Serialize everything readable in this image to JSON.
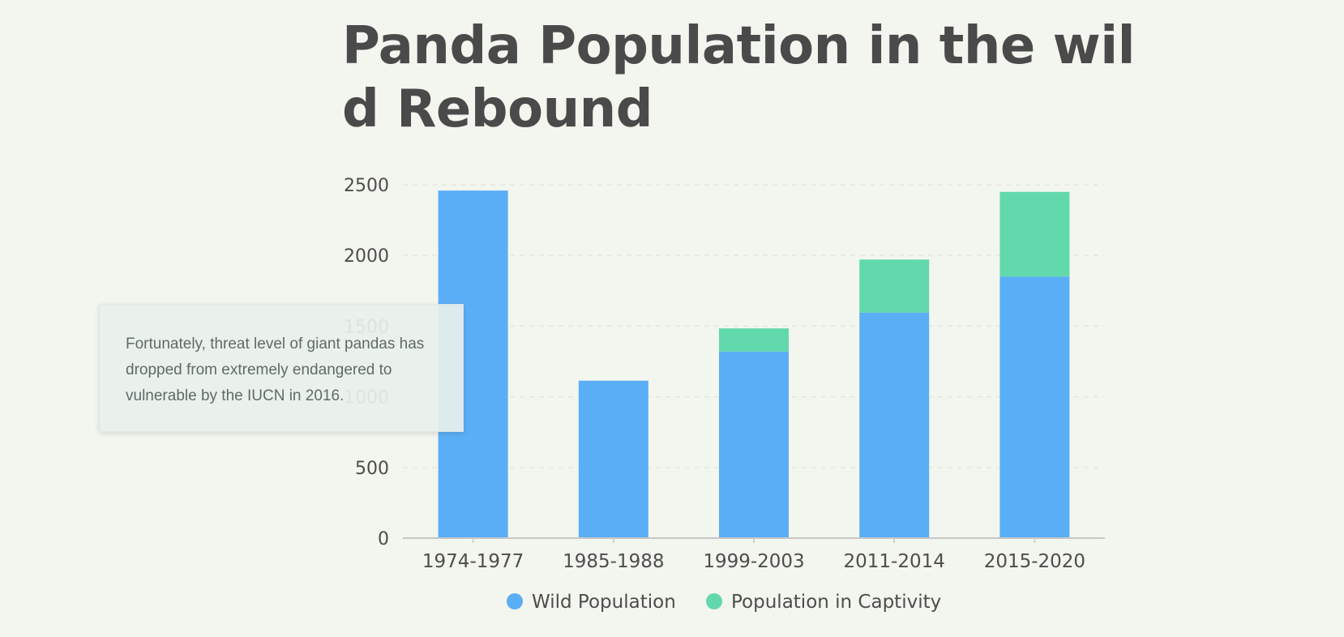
{
  "title": "Panda Population in the wild Rebound",
  "tooltip": {
    "text": "Fortunately, threat level of giant pandas has dropped from extremely endangered to vulnerable by the IUCN in 2016."
  },
  "colors": {
    "wild": "#5aaef5",
    "captivity": "#62d9ac",
    "grid": "#e4e8df",
    "axis": "#c8c8c8"
  },
  "chart_data": {
    "type": "bar",
    "stacked": true,
    "categories": [
      "1974-1977",
      "1985-1988",
      "1999-2003",
      "2011-2014",
      "2015-2020"
    ],
    "series": [
      {
        "name": "Wild Population",
        "values": [
          2459,
          1114,
          1320,
          1596,
          1850
        ]
      },
      {
        "name": "Population in Captivity",
        "values": [
          0,
          0,
          164,
          375,
          600
        ]
      }
    ],
    "yticks": [
      0,
      500,
      1000,
      1500,
      2000,
      2500
    ],
    "ylim": [
      0,
      2500
    ],
    "grid": true,
    "legend": "bottom-center",
    "xlabel": "",
    "ylabel": ""
  }
}
